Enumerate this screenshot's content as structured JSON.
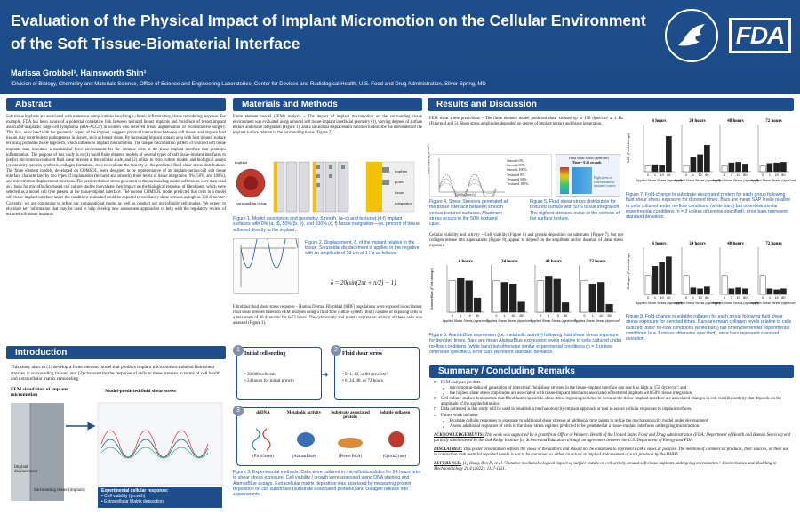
{
  "header": {
    "title": "Evaluation of the Physical Impact of Implant Micromotion on the Cellular Environment of the Soft Tissue-Biomaterial Interface",
    "authors": "Marissa Grobbel¹, Hainsworth Shin¹",
    "affiliation": "¹Division of Biology, Chemistry and Materials Science, Office of Science and Engineering Laboratories, Center for Devices and Radiological Health, U.S. Food and Drug Administration, Silver Spring, MD",
    "seal_text": "DEPARTMENT OF HEALTH & HUMAN SERVICES USA",
    "logo": "FDA",
    "colors": {
      "header_bg": "#1f4e8c",
      "caption": "#1f5aa6"
    }
  },
  "abstract": {
    "heading": "Abstract",
    "text": "Soft tissue implants are associated with numerous complications involving a chronic inflammatory, tissue remodeling response. For example, FDA has been aware of a potential correlative link between textured breast implants and incidence of breast implant associated-anaplastic large cell lymphoma (BIA-ALCL) in women who received breast augmentation or reconstructive surgery. This link, associated with the geometric aspect of the implant, suggests physical interactions between soft tissues and implant host tissues may contribute to pathogenesis in tissues, such as breast tissue. By increasing implant contact area with host tissues, surface texturing promotes tissue ingrowth, which influences implant micromotion. The unique micromotion pattern of textured soft tissue implants may introduce a mechanical force environment for the immune cells at the tissue-implant interface that promotes inflammation. The purpose of this study is to (1) build finite element models of several types of soft tissue-implant interfaces to predict micromotion-induced fluid shear stresses at the cellular scale, and (2) utilize in vitro culture models and biological assays (cytotoxicity, protein synthesis, collagen formation, etc.) to evaluate the toxicity of the predicted fluid shear stress distributions. The finite element models, developed on COMSOL, were designed to be representative of an implant-porous/cell soft tissue interface characterized by two types of implantation (textured and smooth), three levels of tissue integration (0%, 50%, and 100%), and micromotion displacement functions. The predicted shear stress generated in the surrounding model soft tissues were then used as a basis for microfluidics-based cell culture studies to evaluate their impact on the biological response of fibroblasts, which were selected as a model cell type present at the tissue-implant interface. The current COMSOL model predicted that cells in a model soft tissue-implant interface under the conditions evaluated could be exposed to oscillatory shear stresses as high as 150 dyne/cm². Currently, we are continuing to refine our computational model as well as conduct our microfluidic cell studies. We expect to elucidate key information that may be used to help develop new assessment approaches to help with the regulatory review of textured soft tissue implants."
  },
  "introduction": {
    "heading": "Introduction",
    "text": "This study aims to (1) develop a finite element model that predicts implant micromotion-induced fluid shear stresses in surrounding tissues, and (2) characterize the response of cells to these stresses in terms of cell health and extracellular matrix remodeling.",
    "fig_left_title": "FEM simulation of implant micromotion",
    "fig_right_title": "Model-predicted fluid shear stress",
    "label_implant": "Implant",
    "label_displacement": "displacement",
    "label_surrounding": "Surrounding tissue (implant)",
    "response_title": "Experimental cellular response:",
    "response_items": [
      "Cell viability (growth)",
      "Extracellular Matrix deposition"
    ]
  },
  "materials": {
    "heading": "Materials and Methods",
    "fem_text": "Finite element model (FEM) analysis – The impact of implant micromotion on the surrounding tissue environment was evaluated using a model soft tissue-implant interfacial geometry (1), varying degrees of surface texture and tissue integration (Figure 1), and a sinusoidal displacement function to describe the movement of the implant surface relative to the surrounding tissue (Figure 2).",
    "fig1_labels": [
      "implant",
      "surrounding tissue",
      "implant",
      "pores",
      "tissue",
      "integration"
    ],
    "fig1_caption": "Figure 1. Model description and geometry. Smooth, (a–c) and textured (d-f) implant surfaces with 0% (a, d), 50% (b, e), and 100% (c, f) tissue integration—i.e. percent of tissue adhered directly to the implant.",
    "fig2_caption": "Figure 2. Displacement, δ, of the implant relative to the tissue. Sinusoidal displacement is applied in the negative with an amplitude of 20 um at 1 Hz as follows:",
    "equation": "δ = 20(sin(2πt + π/2) − 1)",
    "fib_text": "Fibroblast fluid shear stress response – Human Dermal Fibroblast (HDF) populations were exposed to oscillatory fluid shear stresses based on FEM analyses using a fluid flow culture system (Ibidi) capable of exposing cells to a maximum of 80 dyne/cm² for 6-72 hours. The cytotoxicity and protein expression activity of these cells was assessed (Figure 3).",
    "fig3": {
      "step1_title": "Initial cell seeding",
      "step1_items": [
        "20,000 cells/cm²",
        "24 hours for initial growth"
      ],
      "step2_title": "Fluid shear stress",
      "step2_items": [
        "0, 1, 10, or 80 dyne/cm²",
        "6, 24, 48, or 72 hours"
      ],
      "step3_cols": [
        "dsDNA",
        "Metabolic activity",
        "Substrate associated protein",
        "Soluble collagen"
      ],
      "step3_assays": [
        "(PicoGreen)",
        "(AlamarBlue)",
        "(Pierce BCA)",
        "(QuickZyme)"
      ]
    },
    "fig3_caption": "Figure 3. Experimental methods. Cells were cultured in microfluidics slides for 24 hours prior to shear stress exposure. Cell viability / growth were assessed using DNA staining and AlamarBlue assays. Extracellular matrix deposition was assessed by measuring protein deposition on cell substrates (substrate associated proteins) and collagen release into supernatants."
  },
  "results": {
    "heading": "Results and Discussion",
    "fem_text": "FEM shear stress predictions – The finite element model predicted shear stresses up to 150 dyne/cm² at 1 Hz (Figures 4 and 5). Shear stress amplitudes depended on degree of implant texture and tissue integration.",
    "fig4_legend": [
      "Smooth 0%",
      "Smooth 50%",
      "Smooth 100%",
      "Textured 0%",
      "Textured 50%",
      "Textured 100%"
    ],
    "fig4_ylabel": "Shear Stress (dyne/cm²)",
    "fig4_xlabel": "Contact time (s)",
    "fig5_title": "Fluid Shear Stress (dyne/cm²)",
    "fig5_subtitle": "Time = 0.25 seconds",
    "fig5_note": "High stress is concentrated at textured corners",
    "fig4_caption": "Figure 4. Shear Stresses generated at the tissue interface between smooth versus textured surfaces. Maximum stress occurs in the 50% textured case.",
    "fig5_caption": "Figure 5. Fluid shear stress distribution for textured surface with 50% tissue integration. The highest stresses occur at the corners of the surface texture.",
    "viab_text": "Cellular viability and activity – Cell viability (Figure 6) and protein deposition on substrates (Figure 7), but not collagen release into supernatants (Figure 8), appear to depend on the amplitude and/or duration of shear stress exposure.",
    "fig6_caption": "Figure 6. AlamarBlue expression (i.e. metabolic activity) following fluid shear stress exposure for denoted times. Bars are mean AlamarBlue expression levels relative to cells cultured under no-flow conditions (white bars) but otherwise similar experimental conditions (n = 3 unless otherwise specified), error bars represent standard deviation.",
    "fig7_caption": "Figure 7. Fold-change in substrate-associated protein for each group following fluid shear stress exposure for denoted times. Bars are mean SAP levels relative to cells cultured under no-flow conditions (white bars) but otherwise similar experimental conditions (n = 3 unless otherwise specified), error bars represent standard deviation.",
    "fig8_caption": "Figure 8. Fold-change in soluble collagen for each group following fluid shear stress exposure for denoted times. Bars are mean collagen levels relative to cells cultured under no-flow conditions (white bars) but otherwise similar experimental conditions (n = 3 unless otherwise specified), error bars represent standard deviation."
  },
  "summary": {
    "heading": "Summary / Concluding Remarks",
    "items": [
      {
        "level": 1,
        "text": "FEM analyses predicts"
      },
      {
        "level": 2,
        "text": "micromotion-induced generation of interstitial fluid shear stresses in the tissue-implant interface can reach as high as 150 dyne/cm²; and"
      },
      {
        "level": 2,
        "text": "the highest shear stress amplitudes are associated with tissue-implant interfaces associated of textured implants with 50% tissue integration"
      },
      {
        "level": 1,
        "text": "Cell culture studies demonstrate that fibroblasts exposed to shear stress regimes predicted to occur at the tissue-implant interface are associated changes in cell viability/activity that depends on the amplitude of the applied stimulus"
      },
      {
        "level": 1,
        "text": "Data collected in this study will be used to establish a mechanotoxicity-implant approach or tool to assess cellular responses to implant surfaces."
      },
      {
        "level": 1,
        "text": "Future work includes"
      },
      {
        "level": 2,
        "text": "Evaluate cellular responses to exposure to additional shear stresses at additional time points to refine the mechanotoxicity model under development"
      },
      {
        "level": 2,
        "text": "Assess additional responses of cells to the shear stress regimes predicted to be generated at a tissue-implant interfaces undergoing micromotion."
      }
    ],
    "ack_label": "ACKNOWLEDGEMENTS:",
    "ack_text": "This work was supported by a grant from Office of Women's Health of the United States Food and Drug Administration (FDA; Department of Health and Human Services) and partially administered by the Oak Ridge Institute for Science and Education through an agreement between the U.S. Department of Energy and FDA.",
    "disc_label": "DISCLAIMER:",
    "disc_text": "This poster presentation reflects the views of the authors and should not be construed to represent FDA's views or policies. The mention of commercial products, their sources, or their use in connection with material reported herein is not to be construed as either an actual or implied endorsement of such products by the DHHS.",
    "ref_label": "REFERENCE:",
    "ref_text": "[1] Hung, Ben P., et al. \"Putative mechanobiological impact of surface texture on cell activity around soft-tissue implants undergoing micromotion.\" Biomechanics and Modeling in Mechanobiology 21.4 (2022): 1117-1131."
  },
  "chart_data": [
    {
      "type": "bar",
      "id": "fig6",
      "ylabel": "AlamarBlue (Fold-change)",
      "groups": [
        "6 hours",
        "24 hours",
        "48 hours",
        "72 hours"
      ],
      "categories": [
        "0",
        "1",
        "10",
        "80"
      ],
      "xlabel": "Applied Shear Stress (dyne/cm²)",
      "ylim": [
        0,
        1.5
      ],
      "values": [
        [
          1.0,
          1.1,
          1.0,
          0.45
        ],
        [
          1.0,
          0.95,
          0.9,
          0.35
        ],
        [
          1.0,
          1.15,
          1.05,
          0.3
        ],
        [
          1.0,
          0.9,
          0.95,
          0.25
        ]
      ]
    },
    {
      "type": "bar",
      "id": "fig7",
      "ylabel": "SAP (Fold-change)",
      "groups": [
        "6 hours",
        "24 hours",
        "48 hours",
        "72 hours"
      ],
      "categories": [
        "0",
        "1",
        "10",
        "80"
      ],
      "xlabel": "Applied Shear Stress (dyne/cm²)",
      "ylim": [
        0,
        8
      ],
      "values": [
        [
          1.0,
          1.2,
          1.1,
          6.0
        ],
        [
          1.0,
          2.5,
          2.9,
          4.5
        ],
        [
          1.0,
          1.5,
          1.6,
          1.3
        ],
        [
          1.0,
          1.4,
          1.5,
          1.6
        ]
      ]
    },
    {
      "type": "bar",
      "id": "fig8",
      "ylabel": "Collagen (Fold-change)",
      "groups": [
        "6 hours",
        "24 hours",
        "48 hours",
        "72 hours"
      ],
      "categories": [
        "0",
        "1",
        "10",
        "80"
      ],
      "xlabel": "Applied Shear Stress (dyne/cm²)",
      "ylim": [
        0,
        2.5
      ],
      "values": [
        [
          1.0,
          1.5,
          1.7,
          2.0
        ],
        [
          1.0,
          0.35,
          0.3,
          0.4
        ],
        [
          1.0,
          0.3,
          0.35,
          0.3
        ],
        [
          1.0,
          0.3,
          0.25,
          0.3
        ]
      ]
    }
  ]
}
